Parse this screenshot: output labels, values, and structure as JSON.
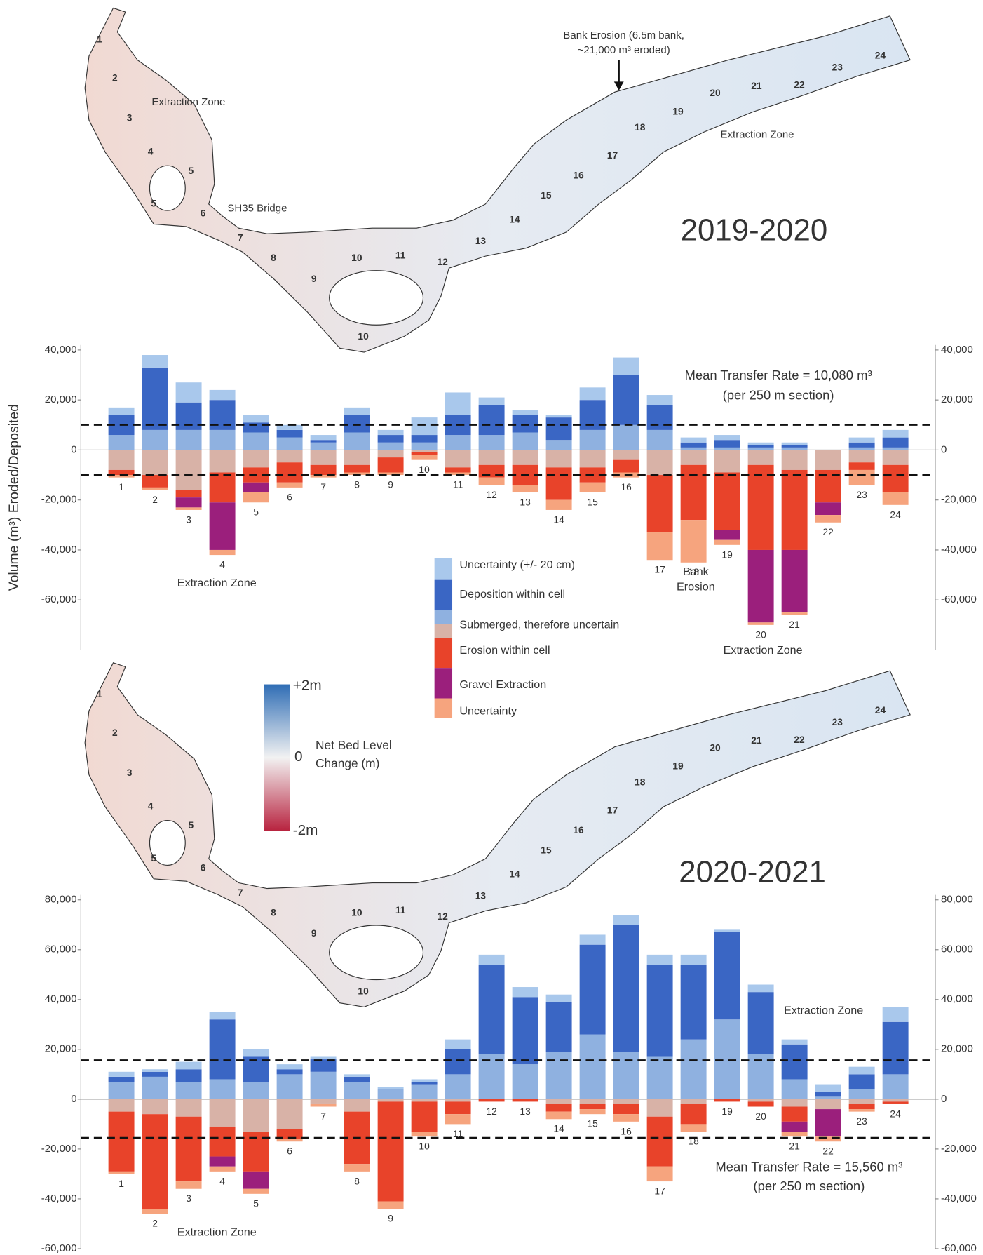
{
  "chart_data": [
    {
      "type": "bar",
      "ylabel": "Volume (m³) Eroded/Deposited",
      "categories": [
        "1",
        "2",
        "3",
        "4",
        "5",
        "6",
        "7",
        "8",
        "9",
        "10",
        "11",
        "12",
        "13",
        "14",
        "15",
        "16",
        "17",
        "18",
        "19",
        "20",
        "21",
        "22",
        "23",
        "24"
      ],
      "ylim": [
        -80000,
        42000
      ],
      "yticks": [
        {
          "value": 40000,
          "label": "40,000"
        },
        {
          "value": 20000,
          "label": "20,000"
        },
        0,
        {
          "value": -20000,
          "label": "-20,000"
        },
        {
          "value": -40000,
          "label": "-40,000"
        },
        {
          "value": -60000,
          "label": "-60,000"
        }
      ],
      "mean_line": 10080,
      "annotations": [
        "Mean Transfer Rate = 10,080 m³",
        "(per 250 m section)",
        "Extraction Zone",
        "Bank",
        "Erosion",
        "Extraction Zone"
      ],
      "series": [
        {
          "name": "Uncertainty (+/- 20 cm)",
          "color": "#a9c8ec",
          "values": [
            3000,
            5000,
            8000,
            4000,
            3000,
            2000,
            2000,
            3000,
            2000,
            7000,
            9000,
            3000,
            2000,
            1000,
            5000,
            7000,
            4000,
            2000,
            2000,
            1000,
            1000,
            0,
            2000,
            3000
          ]
        },
        {
          "name": "Deposition within cell",
          "color": "#3a66c4",
          "values": [
            8000,
            25000,
            11000,
            12000,
            4000,
            3000,
            1000,
            7000,
            3000,
            3000,
            8000,
            12000,
            7000,
            9000,
            12000,
            20000,
            10000,
            2000,
            3000,
            1000,
            1000,
            0,
            2000,
            4000
          ]
        },
        {
          "name": "Submerged, therefore uncertain",
          "color": "#8fb1e0",
          "color_below": "#d8b2a7",
          "values": [
            6000,
            8000,
            8000,
            8000,
            7000,
            5000,
            3000,
            7000,
            3000,
            3000,
            6000,
            6000,
            7000,
            4000,
            8000,
            10000,
            8000,
            1000,
            1000,
            1000,
            1000,
            0,
            1000,
            1000
          ],
          "values_below": [
            -8000,
            -10000,
            -16000,
            -9000,
            -7000,
            -5000,
            -6000,
            -6000,
            -3000,
            -1000,
            -7000,
            -6000,
            -6000,
            -7000,
            -7000,
            -4000,
            -10000,
            -6000,
            -9000,
            -6000,
            -8000,
            -8000,
            -5000,
            -6000
          ]
        },
        {
          "name": "Erosion within cell",
          "color": "#e8432a",
          "values": [
            -2000,
            -5000,
            -3000,
            -12000,
            -6000,
            -8000,
            -4000,
            -3000,
            -6000,
            -1000,
            -2000,
            -5000,
            -8000,
            -13000,
            -6000,
            -5000,
            -23000,
            -22000,
            -23000,
            -34000,
            -32000,
            -13000,
            -3000,
            -11000
          ]
        },
        {
          "name": "Gravel Extraction",
          "color": "#9b1f7c",
          "values": [
            0,
            0,
            -4000,
            -19000,
            -4000,
            0,
            0,
            0,
            0,
            0,
            0,
            0,
            0,
            0,
            0,
            0,
            0,
            0,
            -4000,
            -29000,
            -25000,
            -5000,
            0,
            0
          ]
        },
        {
          "name": "Uncertainty",
          "color": "#f6a47e",
          "values": [
            -1000,
            -1000,
            -1000,
            -2000,
            -4000,
            -2000,
            -1000,
            -1000,
            -1000,
            -2000,
            -1000,
            -3000,
            -3000,
            -4000,
            -4000,
            -2000,
            -11000,
            -17000,
            -2000,
            -1000,
            -1000,
            -3000,
            -6000,
            -5000
          ]
        }
      ]
    },
    {
      "type": "bar",
      "categories": [
        "1",
        "2",
        "3",
        "4",
        "5",
        "6",
        "7",
        "8",
        "9",
        "10",
        "11",
        "12",
        "13",
        "14",
        "15",
        "16",
        "17",
        "18",
        "19",
        "20",
        "21",
        "22",
        "23",
        "24"
      ],
      "ylim": [
        -60000,
        82000
      ],
      "yticks": [
        {
          "value": 80000,
          "label": "80,000"
        },
        {
          "value": 60000,
          "label": "60,000"
        },
        {
          "value": 40000,
          "label": "40,000"
        },
        {
          "value": 20000,
          "label": "20,000"
        },
        0,
        {
          "value": -20000,
          "label": "-20,000"
        },
        {
          "value": -40000,
          "label": "-40,000"
        },
        {
          "value": -60000,
          "label": "-60,000"
        }
      ],
      "mean_line": 15560,
      "annotations": [
        "Mean Transfer Rate = 15,560 m³",
        "(per 250 m section)",
        "Extraction Zone",
        "Extraction Zone"
      ],
      "series": [
        {
          "color": "#a9c8ec",
          "values": [
            2000,
            1000,
            3000,
            3000,
            3000,
            2000,
            1000,
            1000,
            1000,
            1000,
            4000,
            4000,
            4000,
            3000,
            4000,
            4000,
            4000,
            4000,
            1000,
            3000,
            2000,
            3000,
            3000,
            6000
          ]
        },
        {
          "color": "#3a66c4",
          "values": [
            2000,
            2000,
            5000,
            24000,
            10000,
            2000,
            5000,
            2000,
            0,
            1000,
            10000,
            36000,
            27000,
            20000,
            36000,
            51000,
            37000,
            30000,
            35000,
            25000,
            14000,
            2000,
            6000,
            21000
          ]
        },
        {
          "color": "#8fb1e0",
          "color_below": "#d8b2a7",
          "values": [
            7000,
            9000,
            7000,
            8000,
            7000,
            10000,
            11000,
            7000,
            4000,
            6000,
            10000,
            18000,
            14000,
            19000,
            26000,
            19000,
            17000,
            24000,
            32000,
            18000,
            8000,
            1000,
            4000,
            10000
          ],
          "values_below": [
            -5000,
            -6000,
            -7000,
            -11000,
            -13000,
            -12000,
            -2000,
            -5000,
            -1000,
            -1000,
            -1000,
            0,
            0,
            -2000,
            -2000,
            -2000,
            -7000,
            -2000,
            0,
            -1000,
            -3000,
            -4000,
            -2000,
            -1000
          ]
        },
        {
          "color": "#e8432a",
          "values": [
            -24000,
            -38000,
            -26000,
            -12000,
            -16000,
            -4000,
            0,
            -21000,
            -40000,
            -12000,
            -5000,
            -1000,
            -1000,
            -3000,
            -2000,
            -4000,
            -20000,
            -8000,
            -1000,
            -2000,
            -6000,
            0,
            -2000,
            -1000
          ]
        },
        {
          "color": "#9b1f7c",
          "values": [
            0,
            0,
            0,
            -4000,
            -7000,
            0,
            0,
            0,
            0,
            0,
            0,
            0,
            0,
            0,
            0,
            0,
            0,
            0,
            0,
            0,
            -4000,
            -11000,
            0,
            0
          ]
        },
        {
          "color": "#f6a47e",
          "values": [
            -1000,
            -2000,
            -3000,
            -2000,
            -2000,
            -1000,
            -1000,
            -3000,
            -3000,
            -2000,
            -4000,
            0,
            0,
            -3000,
            -2000,
            -3000,
            -6000,
            -3000,
            0,
            0,
            -2000,
            -2000,
            -1000,
            0
          ]
        }
      ]
    }
  ],
  "maps": [
    {
      "title": "2019-2020",
      "section_labels": [
        "1",
        "2",
        "3",
        "4",
        "5",
        "5",
        "6",
        "7",
        "8",
        "9",
        "10",
        "11",
        "12",
        "13",
        "14",
        "15",
        "16",
        "17",
        "18",
        "19",
        "20",
        "21",
        "22",
        "23",
        "24",
        "10"
      ],
      "annotations": [
        "Extraction Zone",
        "SH35 Bridge",
        "Extraction Zone",
        "Bank Erosion (6.5m bank,",
        "~21,000 m³ eroded)"
      ]
    },
    {
      "title": "2020-2021",
      "section_labels": [
        "1",
        "2",
        "3",
        "4",
        "5",
        "5",
        "6",
        "7",
        "8",
        "9",
        "10",
        "11",
        "12",
        "13",
        "14",
        "15",
        "16",
        "17",
        "18",
        "19",
        "20",
        "21",
        "22",
        "23",
        "24",
        "10"
      ]
    }
  ],
  "colorbar": {
    "labels": [
      "+2m",
      "0",
      "-2m"
    ],
    "title_lines": [
      "Net Bed Level",
      "Change (m)"
    ]
  }
}
